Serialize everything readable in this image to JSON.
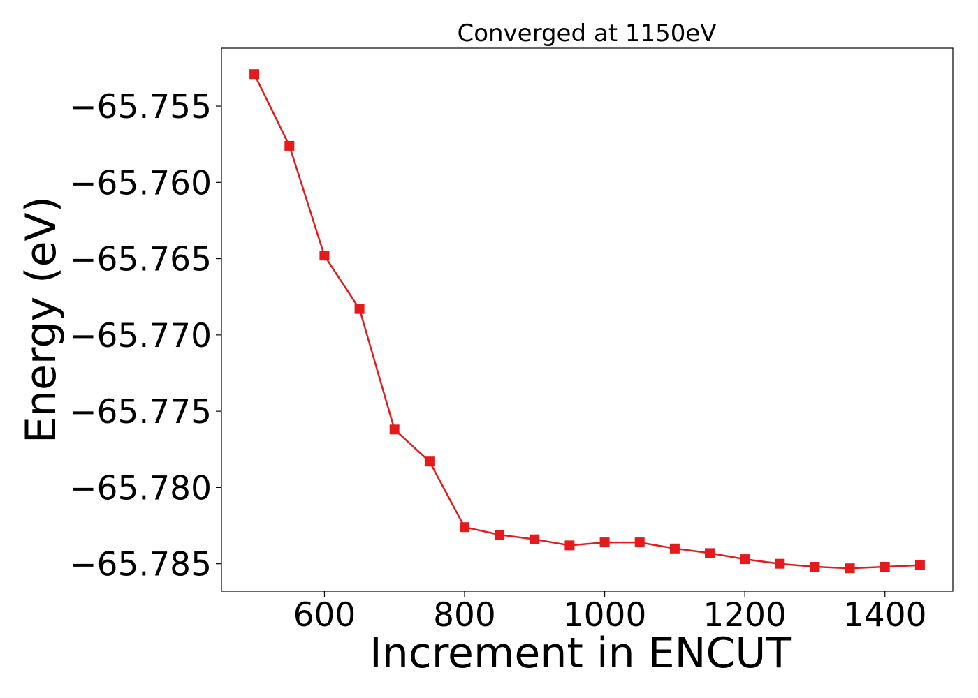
{
  "chart_data": {
    "type": "line",
    "title": "Converged at 1150eV",
    "xlabel": "Increment in ENCUT",
    "ylabel": "Energy (eV)",
    "xlim": [
      453,
      1497
    ],
    "ylim": [
      -65.7868,
      -65.7512
    ],
    "x_ticks": [
      600,
      800,
      1000,
      1200,
      1400
    ],
    "x_tick_labels": [
      "600",
      "800",
      "1000",
      "1200",
      "1400"
    ],
    "y_ticks": [
      -65.755,
      -65.76,
      -65.765,
      -65.77,
      -65.775,
      -65.78,
      -65.785
    ],
    "y_tick_labels": [
      "−65.755",
      "−65.760",
      "−65.765",
      "−65.770",
      "−65.775",
      "−65.780",
      "−65.785"
    ],
    "grid": false,
    "legend": "none",
    "color": "#e41a1c",
    "marker": "square",
    "series": [
      {
        "x": [
          500,
          550,
          600,
          650,
          700,
          750,
          800,
          850,
          900,
          950,
          1000,
          1050,
          1100,
          1150,
          1200,
          1250,
          1300,
          1350,
          1400,
          1450
        ],
        "y": [
          -65.7529,
          -65.7576,
          -65.7648,
          -65.7683,
          -65.7762,
          -65.7783,
          -65.7826,
          -65.7831,
          -65.7834,
          -65.7838,
          -65.7836,
          -65.7836,
          -65.784,
          -65.7843,
          -65.7847,
          -65.785,
          -65.7852,
          -65.7853,
          -65.7852,
          -65.7851
        ]
      }
    ]
  }
}
